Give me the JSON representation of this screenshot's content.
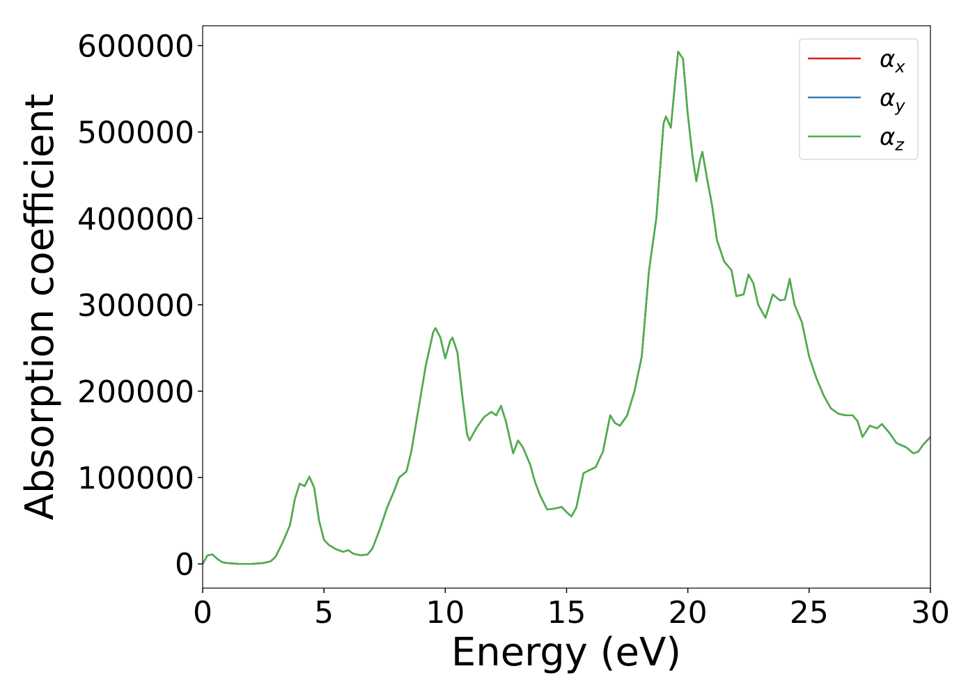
{
  "chart_data": {
    "type": "line",
    "xlabel": "Energy (eV)",
    "ylabel": "Absorption coefficient",
    "x": [
      0,
      0.2,
      0.4,
      0.6,
      0.8,
      1,
      1.5,
      2,
      2.5,
      2.8,
      3,
      3.3,
      3.6,
      3.8,
      4,
      4.2,
      4.4,
      4.6,
      4.8,
      5,
      5.2,
      5.5,
      5.8,
      6,
      6.2,
      6.5,
      6.8,
      7,
      7.3,
      7.6,
      7.9,
      8.1,
      8.4,
      8.6,
      8.9,
      9.2,
      9.5,
      9.6,
      9.8,
      10,
      10.2,
      10.3,
      10.5,
      10.7,
      10.9,
      11,
      11.3,
      11.6,
      11.9,
      12.1,
      12.3,
      12.5,
      12.8,
      13,
      13.2,
      13.5,
      13.7,
      13.9,
      14.2,
      14.5,
      14.8,
      15,
      15.2,
      15.4,
      15.7,
      15.9,
      16.2,
      16.5,
      16.8,
      17,
      17.2,
      17.5,
      17.8,
      18.1,
      18.4,
      18.7,
      19,
      19.1,
      19.3,
      19.5,
      19.6,
      19.8,
      20,
      20.2,
      20.35,
      20.5,
      20.6,
      20.8,
      21,
      21.2,
      21.5,
      21.8,
      22,
      22.3,
      22.5,
      22.7,
      22.9,
      23.2,
      23.5,
      23.8,
      24,
      24.2,
      24.4,
      24.7,
      25,
      25.3,
      25.6,
      25.9,
      26.2,
      26.5,
      26.8,
      27,
      27.2,
      27.5,
      27.8,
      28,
      28.3,
      28.6,
      29,
      29.3,
      29.5,
      29.7,
      30
    ],
    "series": [
      {
        "name": "αx",
        "color": "#e41a1c",
        "values": [
          0,
          10000,
          11000,
          6000,
          2000,
          1000,
          0,
          0,
          1000,
          3000,
          8000,
          25000,
          45000,
          75000,
          93000,
          90000,
          101000,
          88000,
          50000,
          28000,
          22000,
          17000,
          14000,
          16000,
          12000,
          10000,
          11000,
          18000,
          40000,
          65000,
          85000,
          100000,
          107000,
          130000,
          180000,
          230000,
          268000,
          273000,
          262000,
          238000,
          258000,
          262000,
          245000,
          195000,
          150000,
          143000,
          158000,
          170000,
          176000,
          172000,
          183000,
          165000,
          128000,
          143000,
          135000,
          115000,
          95000,
          80000,
          63000,
          64000,
          66000,
          60000,
          55000,
          65000,
          105000,
          108000,
          112000,
          130000,
          172000,
          163000,
          160000,
          172000,
          200000,
          240000,
          340000,
          400000,
          510000,
          518000,
          505000,
          565000,
          593000,
          585000,
          520000,
          470000,
          443000,
          467000,
          477000,
          445000,
          415000,
          375000,
          350000,
          340000,
          310000,
          312000,
          335000,
          325000,
          300000,
          285000,
          312000,
          305000,
          306000,
          330000,
          300000,
          280000,
          240000,
          215000,
          195000,
          180000,
          174000,
          172000,
          172000,
          165000,
          147000,
          160000,
          157000,
          162000,
          152000,
          140000,
          135000,
          128000,
          130000,
          138000,
          147000
        ]
      },
      {
        "name": "αy",
        "color": "#377eb8",
        "values": [
          0,
          10000,
          11000,
          6000,
          2000,
          1000,
          0,
          0,
          1000,
          3000,
          8000,
          25000,
          45000,
          75000,
          93000,
          90000,
          101000,
          88000,
          50000,
          28000,
          22000,
          17000,
          14000,
          16000,
          12000,
          10000,
          11000,
          18000,
          40000,
          65000,
          85000,
          100000,
          107000,
          130000,
          180000,
          230000,
          268000,
          273000,
          262000,
          238000,
          258000,
          262000,
          245000,
          195000,
          150000,
          143000,
          158000,
          170000,
          176000,
          172000,
          183000,
          165000,
          128000,
          143000,
          135000,
          115000,
          95000,
          80000,
          63000,
          64000,
          66000,
          60000,
          55000,
          65000,
          105000,
          108000,
          112000,
          130000,
          172000,
          163000,
          160000,
          172000,
          200000,
          240000,
          340000,
          400000,
          510000,
          518000,
          505000,
          565000,
          593000,
          585000,
          520000,
          470000,
          443000,
          467000,
          477000,
          445000,
          415000,
          375000,
          350000,
          340000,
          310000,
          312000,
          335000,
          325000,
          300000,
          285000,
          312000,
          305000,
          306000,
          330000,
          300000,
          280000,
          240000,
          215000,
          195000,
          180000,
          174000,
          172000,
          172000,
          165000,
          147000,
          160000,
          157000,
          162000,
          152000,
          140000,
          135000,
          128000,
          130000,
          138000,
          147000
        ]
      },
      {
        "name": "αz",
        "color": "#4daf4a",
        "values": [
          0,
          10000,
          11000,
          6000,
          2000,
          1000,
          0,
          0,
          1000,
          3000,
          8000,
          25000,
          45000,
          75000,
          93000,
          90000,
          101000,
          88000,
          50000,
          28000,
          22000,
          17000,
          14000,
          16000,
          12000,
          10000,
          11000,
          18000,
          40000,
          65000,
          85000,
          100000,
          107000,
          130000,
          180000,
          230000,
          268000,
          273000,
          262000,
          238000,
          258000,
          262000,
          245000,
          195000,
          150000,
          143000,
          158000,
          170000,
          176000,
          172000,
          183000,
          165000,
          128000,
          143000,
          135000,
          115000,
          95000,
          80000,
          63000,
          64000,
          66000,
          60000,
          55000,
          65000,
          105000,
          108000,
          112000,
          130000,
          172000,
          163000,
          160000,
          172000,
          200000,
          240000,
          340000,
          400000,
          510000,
          518000,
          505000,
          565000,
          593000,
          585000,
          520000,
          470000,
          443000,
          467000,
          477000,
          445000,
          415000,
          375000,
          350000,
          340000,
          310000,
          312000,
          335000,
          325000,
          300000,
          285000,
          312000,
          305000,
          306000,
          330000,
          300000,
          280000,
          240000,
          215000,
          195000,
          180000,
          174000,
          172000,
          172000,
          165000,
          147000,
          160000,
          157000,
          162000,
          152000,
          140000,
          135000,
          128000,
          130000,
          138000,
          147000
        ]
      }
    ],
    "xlim": [
      0,
      30
    ],
    "xticks": [
      0,
      5,
      10,
      15,
      20,
      25,
      30
    ],
    "ylim": [
      -28000,
      623000
    ],
    "yticks": [
      0,
      100000,
      200000,
      300000,
      400000,
      500000,
      600000
    ],
    "legend": "upper-right"
  }
}
